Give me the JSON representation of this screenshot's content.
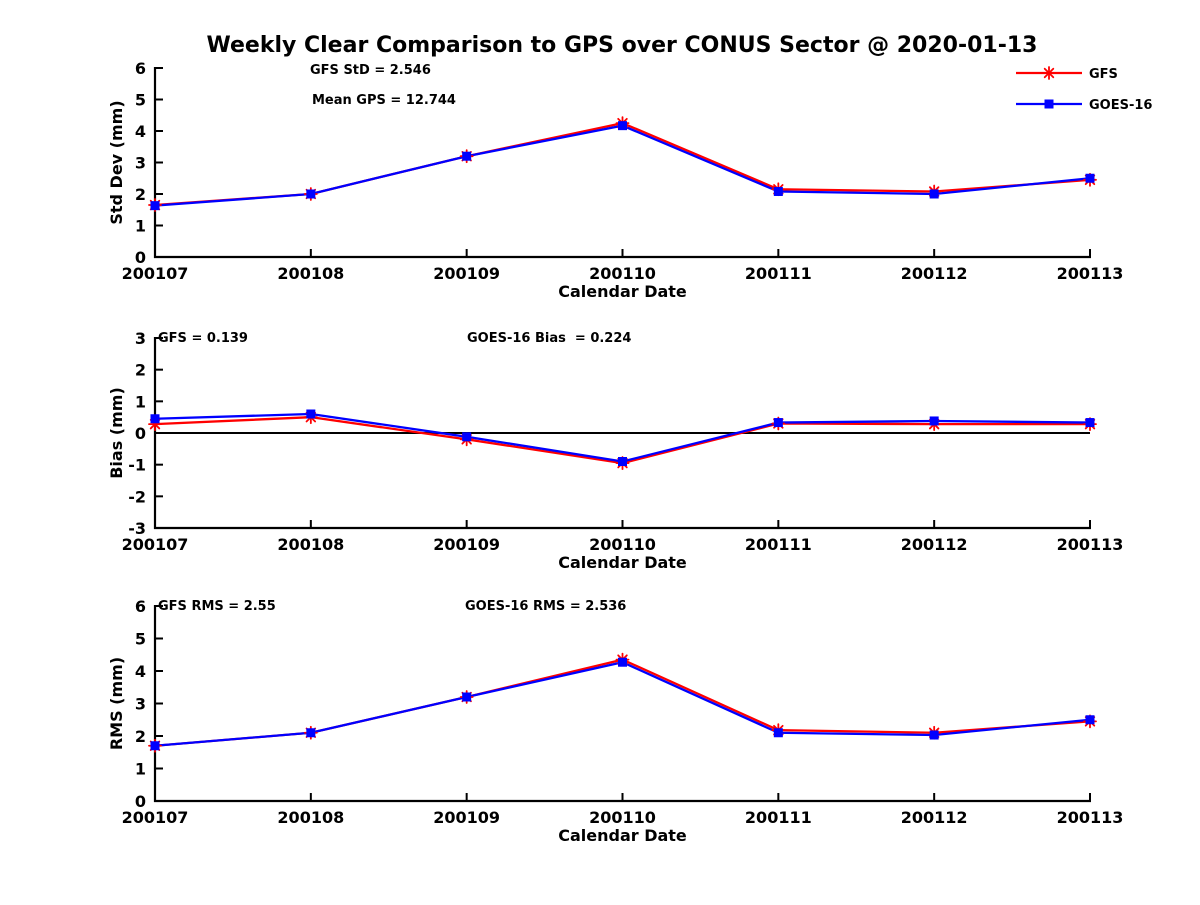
{
  "title": "Weekly Clear Comparison to GPS over CONUS Sector @ 2020-01-13",
  "xlabel": "Calendar Date",
  "categories": [
    "200107",
    "200108",
    "200109",
    "200110",
    "200111",
    "200112",
    "200113"
  ],
  "colors": {
    "gfs": "#ff0000",
    "goes16": "#0000ff",
    "axis": "#000000"
  },
  "legend": {
    "position": "top-right",
    "items": [
      {
        "label": "GFS",
        "color": "#ff0000",
        "marker": "asterisk"
      },
      {
        "label": "GOES-16",
        "color": "#0000ff",
        "marker": "square"
      }
    ]
  },
  "chart_data": [
    {
      "type": "line",
      "ylabel": "Std Dev (mm)",
      "xlabel": "Calendar Date",
      "ylim": [
        0,
        6
      ],
      "yticks": [
        0,
        1,
        2,
        3,
        4,
        5,
        6
      ],
      "grid": false,
      "annotations": [
        "GFS StD = 2.546",
        "Mean GPS = 12.744"
      ],
      "x": [
        "200107",
        "200108",
        "200109",
        "200110",
        "200111",
        "200112",
        "200113"
      ],
      "series": [
        {
          "name": "GFS",
          "color": "#ff0000",
          "marker": "asterisk",
          "values": [
            1.65,
            2.0,
            3.2,
            4.25,
            2.15,
            2.08,
            2.45
          ]
        },
        {
          "name": "GOES-16",
          "color": "#0000ff",
          "marker": "square",
          "values": [
            1.63,
            2.0,
            3.2,
            4.17,
            2.08,
            2.0,
            2.5
          ]
        }
      ]
    },
    {
      "type": "line",
      "ylabel": "Bias (mm)",
      "xlabel": "Calendar Date",
      "ylim": [
        -3,
        3
      ],
      "yticks": [
        -3,
        -2,
        -1,
        0,
        1,
        2,
        3
      ],
      "grid": false,
      "zero_line": true,
      "annotations": [
        "GFS = 0.139",
        "GOES-16 Bias  = 0.224"
      ],
      "x": [
        "200107",
        "200108",
        "200109",
        "200110",
        "200111",
        "200112",
        "200113"
      ],
      "series": [
        {
          "name": "GFS",
          "color": "#ff0000",
          "marker": "asterisk",
          "values": [
            0.28,
            0.5,
            -0.2,
            -0.95,
            0.3,
            0.28,
            0.28
          ]
        },
        {
          "name": "GOES-16",
          "color": "#0000ff",
          "marker": "square",
          "values": [
            0.45,
            0.6,
            -0.12,
            -0.9,
            0.33,
            0.38,
            0.33
          ]
        }
      ]
    },
    {
      "type": "line",
      "ylabel": "RMS (mm)",
      "xlabel": "Calendar Date",
      "ylim": [
        0,
        6
      ],
      "yticks": [
        0,
        1,
        2,
        3,
        4,
        5,
        6
      ],
      "grid": false,
      "annotations": [
        "GFS RMS = 2.55",
        "GOES-16 RMS = 2.536"
      ],
      "x": [
        "200107",
        "200108",
        "200109",
        "200110",
        "200111",
        "200112",
        "200113"
      ],
      "series": [
        {
          "name": "GFS",
          "color": "#ff0000",
          "marker": "asterisk",
          "values": [
            1.7,
            2.1,
            3.2,
            4.35,
            2.18,
            2.1,
            2.45
          ]
        },
        {
          "name": "GOES-16",
          "color": "#0000ff",
          "marker": "square",
          "values": [
            1.7,
            2.1,
            3.2,
            4.27,
            2.1,
            2.03,
            2.5
          ]
        }
      ]
    }
  ]
}
